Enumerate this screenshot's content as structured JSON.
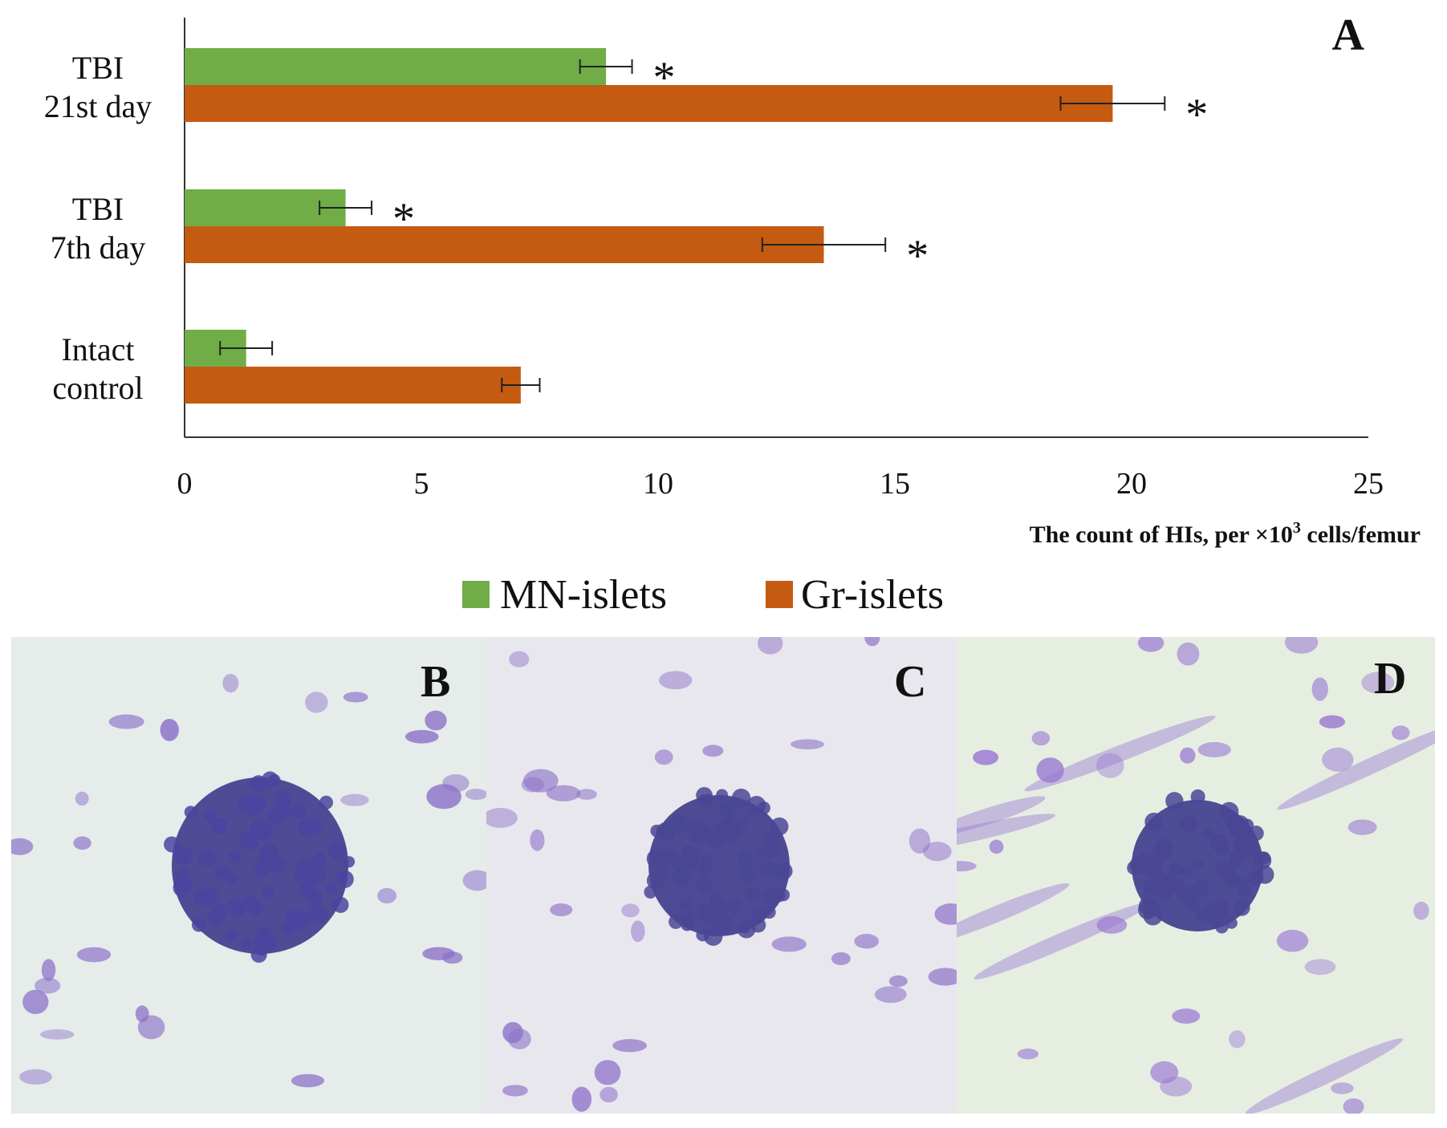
{
  "chart_data": {
    "type": "bar",
    "orientation": "horizontal",
    "panel_label": "A",
    "categories": [
      {
        "lines": [
          "Intact",
          "control"
        ]
      },
      {
        "lines": [
          "TBI",
          "7th day"
        ]
      },
      {
        "lines": [
          "TBI",
          "21st day"
        ]
      }
    ],
    "series": [
      {
        "name": "MN-islets",
        "color": "#70ad47",
        "values": [
          1.3,
          3.4,
          8.9
        ],
        "errors": [
          0.55,
          0.55,
          0.55
        ],
        "significant": [
          false,
          true,
          true
        ]
      },
      {
        "name": "Gr-islets",
        "color": "#c55a11",
        "values": [
          7.1,
          13.5,
          19.6
        ],
        "errors": [
          0.4,
          1.3,
          1.1
        ],
        "significant": [
          false,
          true,
          true
        ]
      }
    ],
    "xlim": [
      0,
      25
    ],
    "xticks": [
      0,
      5,
      10,
      15,
      20,
      25
    ],
    "xlabel": {
      "main": "The  count  of HIs,  per ×10",
      "sup": "3",
      "rest": " cells/femur"
    },
    "significance_marker": "*",
    "legend_position": "bottom"
  },
  "micrographs": [
    {
      "label": "B",
      "background": "#e6ecea",
      "cluster": "#3e3a8c",
      "cells": "#8d73c9"
    },
    {
      "label": "C",
      "background": "#e9e7ee",
      "cluster": "#3d3a8a",
      "cells": "#8f74c8"
    },
    {
      "label": "D",
      "background": "#e6eee2",
      "cluster": "#3c3a8d",
      "cells": "#9b7bd3"
    }
  ]
}
